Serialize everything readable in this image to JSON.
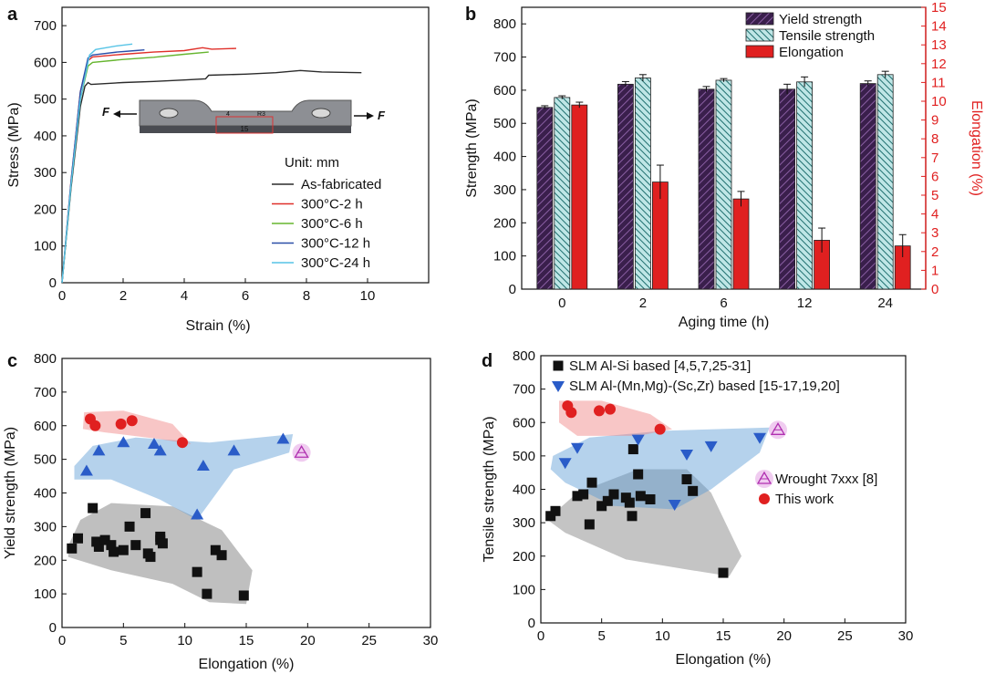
{
  "chart_data": [
    {
      "panel": "a",
      "type": "line",
      "xlabel": "Strain (%)",
      "ylabel": "Stress (MPa)",
      "xlim": [
        0,
        12
      ],
      "ylim": [
        0,
        750
      ],
      "xticks": [
        "0",
        "2",
        "4",
        "6",
        "8",
        "10"
      ],
      "yticks": [
        "0",
        "100",
        "200",
        "300",
        "400",
        "500",
        "600",
        "700"
      ],
      "legend_position": "bottom-right",
      "inset": {
        "unit": "Unit: mm",
        "force_left": "F",
        "force_right": "F",
        "dim1": "15",
        "dim2": "4",
        "dim3": "R3"
      },
      "series": [
        {
          "name": "As-fabricated",
          "color": "#2b2b2b",
          "x": [
            0,
            0.3,
            0.6,
            0.75,
            0.85,
            0.95,
            2,
            3,
            4,
            4.7,
            4.8,
            6,
            7,
            7.8,
            8.5,
            9.8
          ],
          "y": [
            0,
            260,
            480,
            535,
            545,
            540,
            545,
            548,
            552,
            555,
            565,
            568,
            572,
            578,
            574,
            572
          ]
        },
        {
          "name": "300°C-2 h",
          "color": "#e0302a",
          "x": [
            0,
            0.3,
            0.6,
            0.85,
            1.0,
            2,
            3,
            4,
            4.6,
            4.9,
            5.7
          ],
          "y": [
            0,
            280,
            520,
            605,
            615,
            622,
            628,
            632,
            640,
            636,
            638
          ]
        },
        {
          "name": "300°C-6 h",
          "color": "#66b52f",
          "x": [
            0,
            0.3,
            0.6,
            0.85,
            1.0,
            2,
            3,
            4,
            4.8
          ],
          "y": [
            0,
            270,
            500,
            590,
            600,
            608,
            614,
            622,
            628
          ]
        },
        {
          "name": "300°C-12 h",
          "color": "#2a4fa8",
          "x": [
            0,
            0.3,
            0.6,
            0.85,
            1.0,
            1.8,
            2.4,
            2.7
          ],
          "y": [
            0,
            280,
            520,
            612,
            620,
            628,
            632,
            634
          ]
        },
        {
          "name": "300°C-24 h",
          "color": "#57c4e6",
          "x": [
            0,
            0.3,
            0.6,
            0.9,
            1.1,
            1.8,
            2.3
          ],
          "y": [
            0,
            270,
            500,
            620,
            635,
            645,
            650
          ]
        }
      ]
    },
    {
      "panel": "b",
      "type": "bar",
      "xlabel": "Aging time (h)",
      "ylabel": "Strength (MPa)",
      "y2label": "Elongation (%)",
      "categories": [
        "0",
        "2",
        "6",
        "12",
        "24"
      ],
      "ylim": [
        0,
        850
      ],
      "y2lim": [
        0,
        15
      ],
      "yticks": [
        "0",
        "100",
        "200",
        "300",
        "400",
        "500",
        "600",
        "700",
        "800"
      ],
      "y2ticks": [
        "0",
        "1",
        "2",
        "3",
        "4",
        "5",
        "6",
        "7",
        "8",
        "9",
        "10",
        "11",
        "12",
        "13",
        "14",
        "15"
      ],
      "legend_position": "top-right",
      "series": [
        {
          "name": "Yield strength",
          "axis": "left",
          "color": "#4a2a5e",
          "values": [
            548,
            618,
            603,
            603,
            620
          ],
          "errors": [
            5,
            8,
            8,
            15,
            8
          ]
        },
        {
          "name": "Tensile strength",
          "axis": "left",
          "color": "#2f8a8a",
          "values": [
            578,
            637,
            630,
            625,
            647
          ],
          "errors": [
            5,
            10,
            5,
            15,
            10
          ]
        },
        {
          "name": "Elongation",
          "axis": "right",
          "color": "#e02020",
          "values": [
            9.8,
            5.7,
            4.8,
            2.6,
            2.3
          ],
          "errors": [
            0.15,
            0.9,
            0.4,
            0.65,
            0.6
          ]
        }
      ]
    },
    {
      "panel": "c",
      "type": "scatter",
      "xlabel": "Elongation (%)",
      "ylabel": "Yield strength (MPa)",
      "xlim": [
        0,
        30
      ],
      "ylim": [
        0,
        800
      ],
      "xticks": [
        "0",
        "5",
        "10",
        "15",
        "20",
        "25",
        "30"
      ],
      "yticks": [
        "0",
        "100",
        "200",
        "300",
        "400",
        "500",
        "600",
        "700",
        "800"
      ],
      "series": [
        {
          "name": "SLM Al-Si based",
          "marker": "square",
          "color": "#111111",
          "x": [
            0.8,
            1.3,
            2.5,
            2.8,
            3,
            3.5,
            4,
            4.2,
            5,
            5.5,
            6,
            6.8,
            7,
            7.2,
            8,
            8,
            8.2,
            11,
            11.8,
            12.5,
            13,
            14.8
          ],
          "y": [
            235,
            265,
            355,
            255,
            240,
            260,
            245,
            225,
            230,
            300,
            245,
            340,
            220,
            210,
            270,
            260,
            250,
            165,
            100,
            230,
            215,
            95
          ]
        },
        {
          "name": "SLM Al-(Mn,Mg)-(Sc,Zr) based",
          "marker": "triangle-up",
          "color": "#2a5cc8",
          "x": [
            2,
            3,
            5,
            7.5,
            8,
            11,
            11.5,
            14,
            18
          ],
          "y": [
            465,
            525,
            550,
            545,
            525,
            335,
            480,
            525,
            560
          ]
        },
        {
          "name": "Wrought 7xxx [8]",
          "marker": "triangle-open",
          "color": "#b030b0",
          "x": [
            19.5
          ],
          "y": [
            520
          ]
        },
        {
          "name": "This work",
          "marker": "circle",
          "color": "#e02020",
          "x": [
            2.3,
            2.7,
            4.8,
            5.7,
            9.8
          ],
          "y": [
            620,
            600,
            605,
            615,
            550
          ]
        }
      ]
    },
    {
      "panel": "d",
      "type": "scatter",
      "xlabel": "Elongation (%)",
      "ylabel": "Tensile strength (MPa)",
      "xlim": [
        0,
        30
      ],
      "ylim": [
        0,
        800
      ],
      "xticks": [
        "0",
        "5",
        "10",
        "15",
        "20",
        "25",
        "30"
      ],
      "yticks": [
        "0",
        "100",
        "200",
        "300",
        "400",
        "500",
        "600",
        "700",
        "800"
      ],
      "legend": [
        "SLM Al-Si based [4,5,7,25-31]",
        "SLM Al-(Mn,Mg)-(Sc,Zr) based [15-17,19,20]",
        "Wrought 7xxx [8]",
        "This work"
      ],
      "series": [
        {
          "name": "SLM Al-Si based [4,5,7,25-31]",
          "marker": "square",
          "color": "#111111",
          "x": [
            0.8,
            1.2,
            3,
            3.5,
            4,
            4.2,
            5,
            5.5,
            6,
            7,
            7.3,
            7.5,
            7.6,
            8,
            8.2,
            9,
            12,
            12.5,
            15
          ],
          "y": [
            320,
            335,
            380,
            385,
            295,
            420,
            350,
            365,
            385,
            375,
            360,
            320,
            520,
            445,
            380,
            370,
            430,
            395,
            150
          ]
        },
        {
          "name": "SLM Al-(Mn,Mg)-(Sc,Zr) based [15-17,19,20]",
          "marker": "triangle-down",
          "color": "#2a5cc8",
          "x": [
            2,
            3,
            8,
            11,
            12,
            14,
            18
          ],
          "y": [
            480,
            525,
            550,
            355,
            505,
            530,
            555
          ]
        },
        {
          "name": "Wrought 7xxx [8]",
          "marker": "triangle-open",
          "color": "#b030b0",
          "x": [
            19.5
          ],
          "y": [
            578
          ]
        },
        {
          "name": "This work",
          "marker": "circle",
          "color": "#e02020",
          "x": [
            2.2,
            2.5,
            4.8,
            5.7,
            9.8
          ],
          "y": [
            650,
            630,
            635,
            640,
            580
          ]
        }
      ]
    }
  ],
  "labels": {
    "a": "a",
    "b": "b",
    "c": "c",
    "d": "d"
  }
}
